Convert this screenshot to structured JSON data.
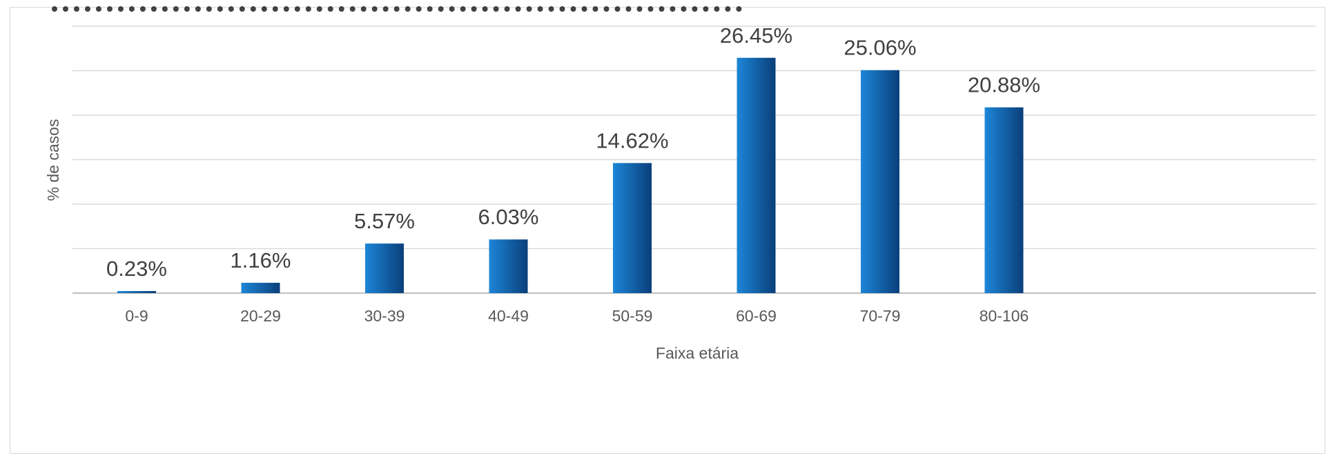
{
  "chart_data": {
    "type": "bar",
    "title": "",
    "xlabel": "Faixa etária",
    "ylabel": "% de casos",
    "categories": [
      "0-9",
      "20-29",
      "30-39",
      "40-49",
      "50-59",
      "60-69",
      "70-79",
      "80-106"
    ],
    "values": [
      0.23,
      1.16,
      5.57,
      6.03,
      14.62,
      26.45,
      25.06,
      20.88
    ],
    "data_labels": [
      "0.23%",
      "1.16%",
      "5.57%",
      "6.03%",
      "14.62%",
      "26.45%",
      "25.06%",
      "20.88%"
    ],
    "ylim": [
      0,
      30
    ],
    "grid": true,
    "legend": "none",
    "colors": {
      "bar_light": "#1d86d8",
      "bar_dark": "#0a3f7a",
      "grid": "#d9d9d9",
      "axis": "#bfbfbf"
    }
  }
}
